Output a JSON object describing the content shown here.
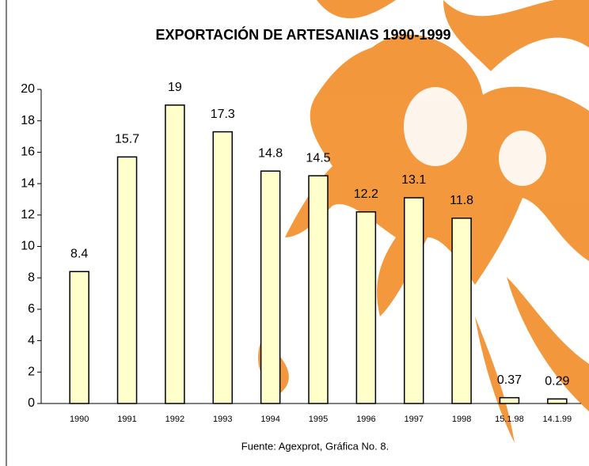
{
  "chart_data": {
    "type": "bar",
    "title": "EXPORTACIÓN DE ARTESANIAS 1990-1999",
    "source": "Fuente: Agexprot, Gráfica No. 8.",
    "categories": [
      "1990",
      "1991",
      "1992",
      "1993",
      "1994",
      "1995",
      "1996",
      "1997",
      "1998",
      "15.1.98",
      "14.1.99"
    ],
    "values": [
      8.4,
      15.7,
      19,
      17.3,
      14.8,
      14.5,
      12.2,
      13.1,
      11.8,
      0.37,
      0.29
    ],
    "color": "#ffffcc",
    "ylim": [
      0,
      20
    ],
    "yticks": [
      0,
      2,
      4,
      6,
      8,
      10,
      12,
      14,
      16,
      18,
      20
    ]
  }
}
